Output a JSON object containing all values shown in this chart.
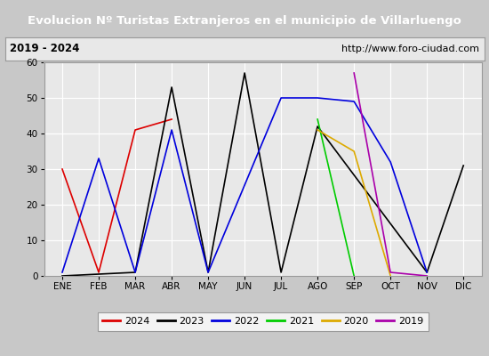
{
  "title": "Evolucion Nº Turistas Extranjeros en el municipio de Villarluengo",
  "subtitle_left": "2019 - 2024",
  "subtitle_right": "http://www.foro-ciudad.com",
  "months": [
    "ENE",
    "FEB",
    "MAR",
    "ABR",
    "MAY",
    "JUN",
    "JUL",
    "AGO",
    "SEP",
    "OCT",
    "NOV",
    "DIC"
  ],
  "series": {
    "2024": {
      "color": "#dd0000",
      "data": [
        [
          0,
          30
        ],
        [
          1,
          1
        ],
        [
          2,
          41
        ],
        [
          3,
          44
        ]
      ]
    },
    "2023": {
      "color": "#000000",
      "data": [
        [
          0,
          0
        ],
        [
          2,
          1
        ],
        [
          3,
          53
        ],
        [
          4,
          1
        ],
        [
          5,
          57
        ],
        [
          6,
          1
        ],
        [
          7,
          42
        ],
        [
          10,
          1
        ],
        [
          11,
          31
        ]
      ]
    },
    "2022": {
      "color": "#0000dd",
      "data": [
        [
          0,
          1
        ],
        [
          1,
          33
        ],
        [
          2,
          1
        ],
        [
          3,
          41
        ],
        [
          4,
          1
        ],
        [
          6,
          50
        ],
        [
          7,
          50
        ],
        [
          8,
          49
        ],
        [
          9,
          32
        ],
        [
          10,
          1
        ]
      ]
    },
    "2021": {
      "color": "#00cc00",
      "data": [
        [
          7,
          44
        ],
        [
          8,
          0
        ]
      ]
    },
    "2020": {
      "color": "#ddaa00",
      "data": [
        [
          7,
          41
        ],
        [
          8,
          35
        ],
        [
          9,
          0
        ]
      ]
    },
    "2019": {
      "color": "#aa00aa",
      "data": [
        [
          8,
          57
        ],
        [
          9,
          1
        ],
        [
          10,
          0
        ]
      ]
    }
  },
  "ylim": [
    0,
    60
  ],
  "yticks": [
    0,
    10,
    20,
    30,
    40,
    50,
    60
  ],
  "title_bg_color": "#4477cc",
  "title_text_color": "#ffffff",
  "subtitle_bg_color": "#e8e8e8",
  "plot_bg_color": "#e8e8e8",
  "grid_color": "#ffffff",
  "outer_bg_color": "#c8c8c8",
  "legend_order": [
    "2024",
    "2023",
    "2022",
    "2021",
    "2020",
    "2019"
  ]
}
